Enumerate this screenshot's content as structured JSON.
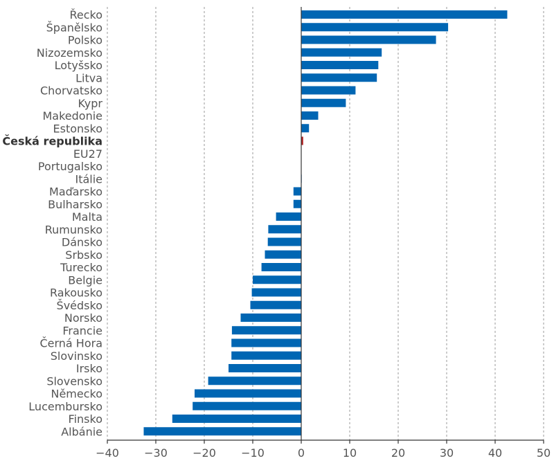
{
  "chart_data": {
    "type": "bar",
    "orientation": "horizontal",
    "title": "",
    "xlabel": "",
    "ylabel": "",
    "xlim": [
      -40,
      50
    ],
    "ticks": [
      -40,
      -30,
      -20,
      -10,
      0,
      10,
      20,
      30,
      40,
      50
    ],
    "tick_labels": [
      "−40",
      "−30",
      "−20",
      "−10",
      "0",
      "10",
      "20",
      "30",
      "40",
      "50"
    ],
    "grid": "vertical-dashed",
    "bar_color": "#0066b3",
    "highlight_color": "#b22222",
    "highlight_category": "Česká republika",
    "categories": [
      "Řecko",
      "Španělsko",
      "Polsko",
      "Nizozemsko",
      "Lotyšsko",
      "Litva",
      "Chorvatsko",
      "Kypr",
      "Makedonie",
      "Estonsko",
      "Česká republika",
      "EU27",
      "Portugalsko",
      "Itálie",
      "Maďarsko",
      "Bulharsko",
      "Malta",
      "Rumunsko",
      "Dánsko",
      "Srbsko",
      "Turecko",
      "Belgie",
      "Rakousko",
      "Švédsko",
      "Norsko",
      "Francie",
      "Černá Hora",
      "Slovinsko",
      "Irsko",
      "Slovensko",
      "Německo",
      "Lucembursko",
      "Finsko",
      "Albánie"
    ],
    "values": [
      42.5,
      30.3,
      27.8,
      16.6,
      15.9,
      15.6,
      11.2,
      9.2,
      3.5,
      1.6,
      0.4,
      0.0,
      0.0,
      0.1,
      -1.6,
      -1.6,
      -5.2,
      -6.8,
      -6.9,
      -7.5,
      -8.2,
      -10.0,
      -10.2,
      -10.5,
      -12.5,
      -14.3,
      -14.4,
      -14.4,
      -15.0,
      -19.2,
      -22.0,
      -22.4,
      -26.6,
      -32.5
    ]
  }
}
